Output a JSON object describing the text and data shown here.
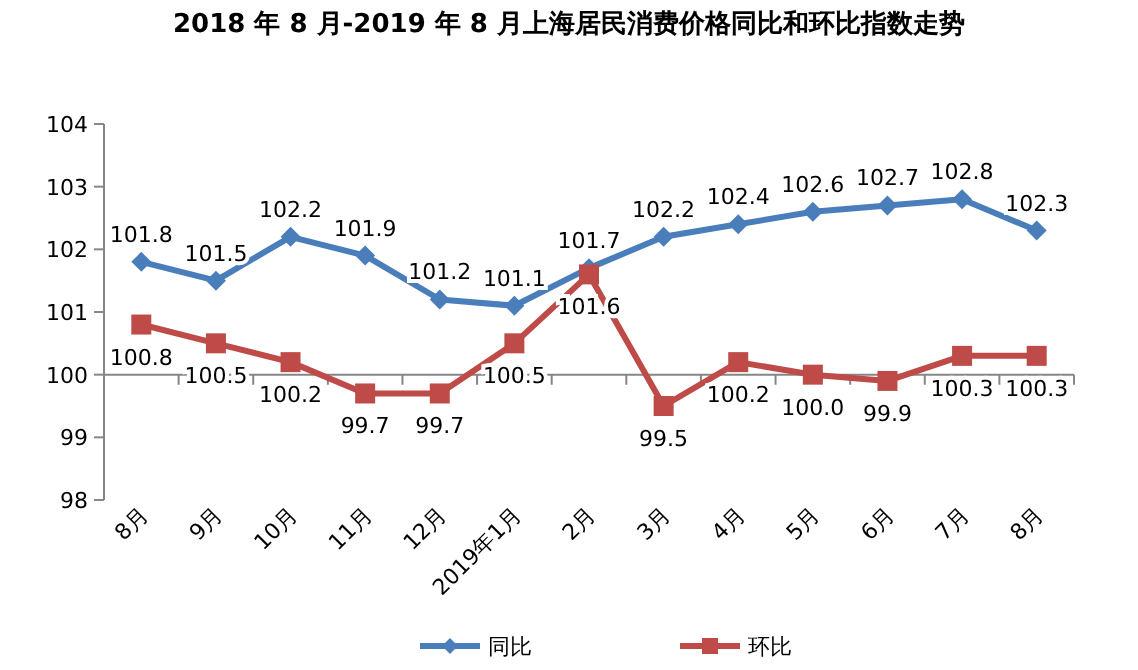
{
  "chart_data": {
    "type": "line",
    "title": "2018 年 8 月-2019 年 8 月上海居民消费价格同比和环比指数走势",
    "categories": [
      "8月",
      "9月",
      "10月",
      "11月",
      "12月",
      "2019年1月",
      "2月",
      "3月",
      "4月",
      "5月",
      "6月",
      "7月",
      "8月"
    ],
    "series": [
      {
        "name": "同比",
        "color": "#4a7ebb",
        "marker": "diamond",
        "values": [
          101.8,
          101.5,
          102.2,
          101.9,
          101.2,
          101.1,
          101.7,
          102.2,
          102.4,
          102.6,
          102.7,
          102.8,
          102.3
        ],
        "value_labels": [
          "101.8",
          "101.5",
          "102.2",
          "101.9",
          "101.2",
          "101.1",
          "101.7",
          "102.2",
          "102.4",
          "102.6",
          "102.7",
          "102.8",
          "102.3"
        ]
      },
      {
        "name": "环比",
        "color": "#be4b48",
        "marker": "square",
        "values": [
          100.8,
          100.5,
          100.2,
          99.7,
          99.7,
          100.5,
          101.6,
          99.5,
          100.2,
          100.0,
          99.9,
          100.3,
          100.3
        ],
        "value_labels": [
          "100.8",
          "100.5",
          "100.2",
          "99.7",
          "99.7",
          "100.5",
          "101.6",
          "99.5",
          "100.2",
          "100.0",
          "99.9",
          "100.3",
          "100.3"
        ]
      }
    ],
    "ylim": [
      98,
      104
    ],
    "yticks": [
      98,
      99,
      100,
      101,
      102,
      103,
      104
    ],
    "ref_lines": [
      {
        "axis": "y",
        "value": 100,
        "color": "#868686"
      }
    ],
    "legend": "bottom",
    "line_style": "solid"
  }
}
